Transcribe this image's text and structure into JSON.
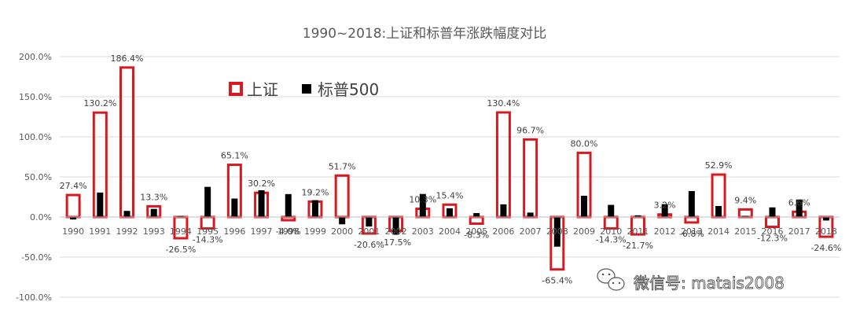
{
  "chart_data": {
    "type": "bar",
    "title": "1990~2018:上证和标普年涨跌幅度对比",
    "xlabel": "",
    "ylabel": "",
    "ylim": [
      -100,
      200
    ],
    "y_ticks": [
      "200.0%",
      "150.0%",
      "100.0%",
      "50.0%",
      "0.0%",
      "-50.0%",
      "-100.0%"
    ],
    "y_tick_values": [
      200,
      150,
      100,
      50,
      0,
      -50,
      -100
    ],
    "categories": [
      "1990",
      "1991",
      "1992",
      "1993",
      "1994",
      "1995",
      "1996",
      "1997",
      "1998",
      "1999",
      "2000",
      "2001",
      "2002",
      "2003",
      "2004",
      "2005",
      "2006",
      "2007",
      "2008",
      "2009",
      "2010",
      "2011",
      "2012",
      "2013",
      "2014",
      "2015",
      "2016",
      "2017",
      "2018"
    ],
    "series": [
      {
        "name": "上证",
        "style": "outline",
        "color": "#d71920",
        "values": [
          27.4,
          130.2,
          186.4,
          13.3,
          -26.5,
          -14.3,
          65.1,
          30.2,
          -4.0,
          19.2,
          51.7,
          -20.6,
          -17.5,
          10.3,
          15.4,
          -8.3,
          130.4,
          96.7,
          -65.4,
          80.0,
          -14.3,
          -21.7,
          3.2,
          -6.8,
          52.9,
          9.4,
          -12.3,
          6.6,
          -24.6
        ],
        "labels": [
          "27.4%",
          "130.2%",
          "186.4%",
          "13.3%",
          "-26.5%",
          "-14.3%",
          "65.1%",
          "30.2%",
          "-4.0%",
          "19.2%",
          "51.7%",
          "-20.6%",
          "-17.5%",
          "10.3%",
          "15.4%",
          "-8.3%",
          "130.4%",
          "96.7%",
          "-65.4%",
          "80.0%",
          "-14.3%",
          "-21.7%",
          "3.2%",
          "-6.8%",
          "52.9%",
          "9.4%",
          "-12.3%",
          "6.6%",
          "-24.6%"
        ]
      },
      {
        "name": "标普500",
        "style": "solid",
        "color": "#000000",
        "values": [
          -3.1,
          30.5,
          7.6,
          10.1,
          1.3,
          37.6,
          23.0,
          33.4,
          28.6,
          21.0,
          -9.1,
          -11.9,
          -22.1,
          28.7,
          10.9,
          4.9,
          15.8,
          5.5,
          -37.0,
          26.5,
          15.1,
          2.1,
          16.0,
          32.4,
          13.7,
          1.4,
          12.0,
          21.8,
          -4.4
        ]
      }
    ],
    "legend_position": "top-center"
  },
  "watermark": {
    "text": "微信号: matais2008"
  }
}
